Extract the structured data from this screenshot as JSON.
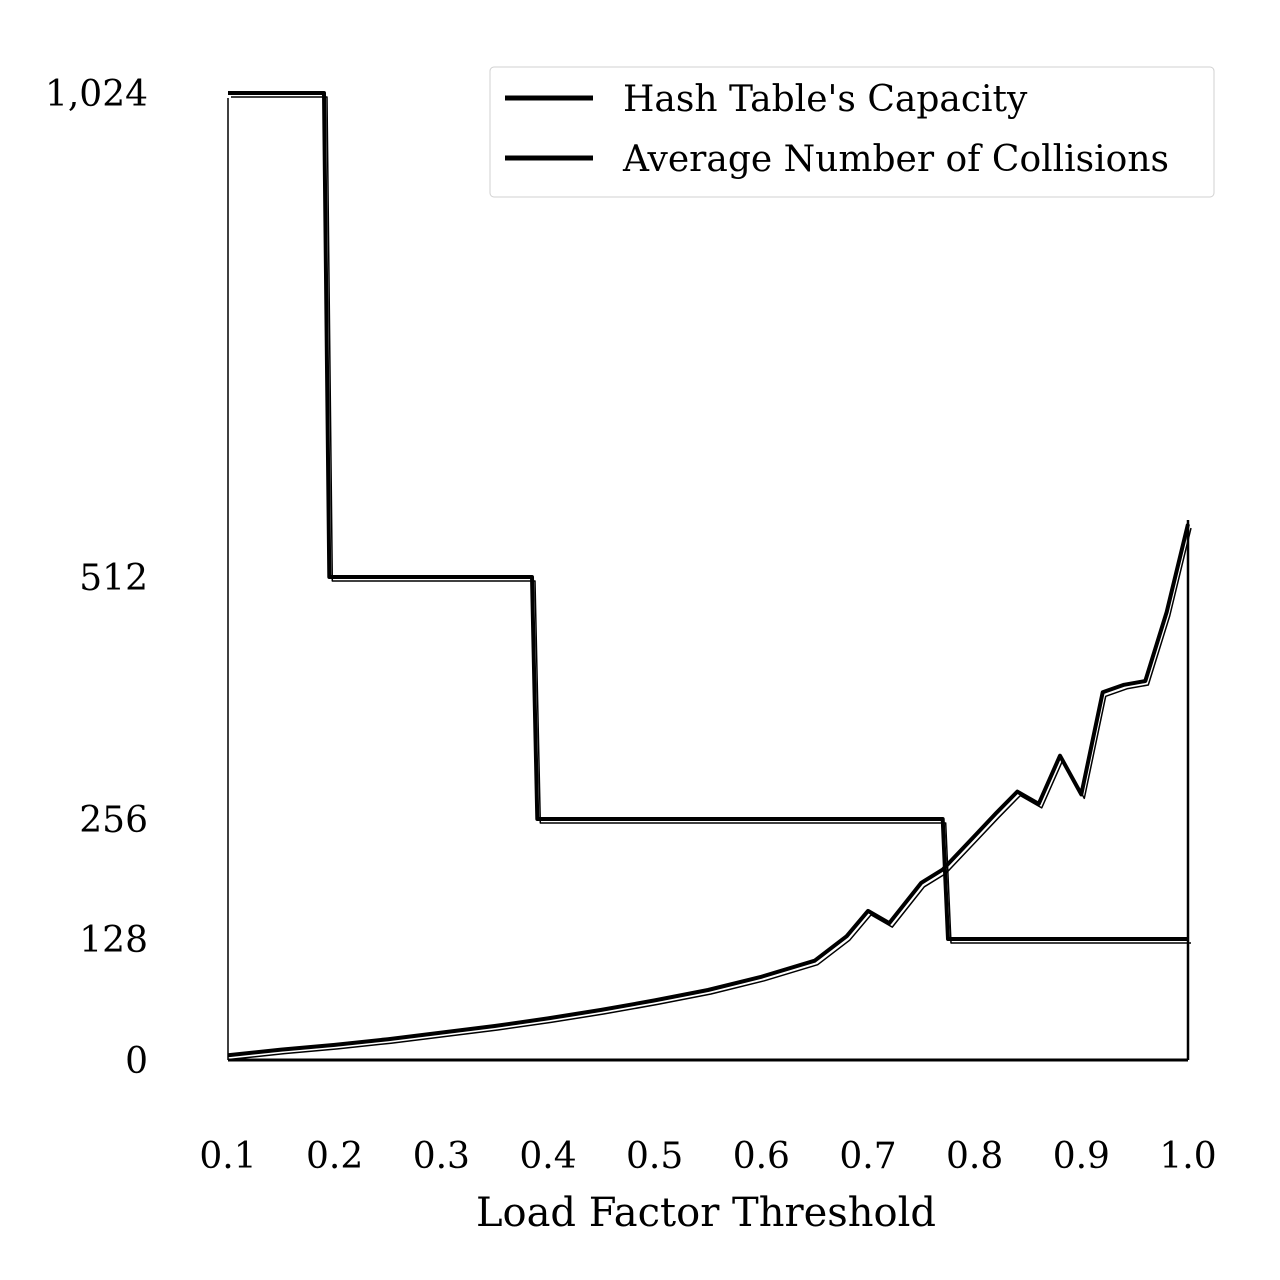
{
  "chart_data": {
    "type": "line",
    "title": "",
    "xlabel": "Load Factor Threshold",
    "ylabel": "",
    "xlim": [
      0.1,
      1.0
    ],
    "ylim": [
      0,
      1024
    ],
    "y_scale": "custom-tick-scale",
    "grid": false,
    "legend_position": "top-right",
    "x_ticks": [
      "0.1",
      "0.2",
      "0.3",
      "0.4",
      "0.5",
      "0.6",
      "0.7",
      "0.8",
      "0.9",
      "1.0"
    ],
    "y_ticks": [
      {
        "value": 0,
        "label": "0"
      },
      {
        "value": 128,
        "label": "128"
      },
      {
        "value": 256,
        "label": "256"
      },
      {
        "value": 512,
        "label": "512"
      },
      {
        "value": 1024,
        "label": "1,024"
      }
    ],
    "series": [
      {
        "name": "Hash Table's Capacity",
        "color": "#000000",
        "x": [
          0.1,
          0.19,
          0.195,
          0.385,
          0.39,
          0.77,
          0.775,
          1.0
        ],
        "y": [
          1024,
          1024,
          512,
          512,
          256,
          256,
          128,
          128
        ]
      },
      {
        "name": "Average Number of Collisions",
        "color": "#000000",
        "x": [
          0.1,
          0.15,
          0.2,
          0.25,
          0.3,
          0.35,
          0.4,
          0.45,
          0.5,
          0.55,
          0.6,
          0.65,
          0.68,
          0.7,
          0.72,
          0.75,
          0.77,
          0.8,
          0.82,
          0.84,
          0.86,
          0.88,
          0.9,
          0.92,
          0.94,
          0.96,
          0.98,
          1.0
        ],
        "y": [
          5,
          11,
          16,
          22,
          29,
          36,
          44,
          53,
          63,
          74,
          88,
          105,
          131,
          158,
          145,
          188,
          202,
          238,
          262,
          285,
          272,
          323,
          282,
          390,
          398,
          402,
          475,
          568
        ]
      }
    ]
  }
}
